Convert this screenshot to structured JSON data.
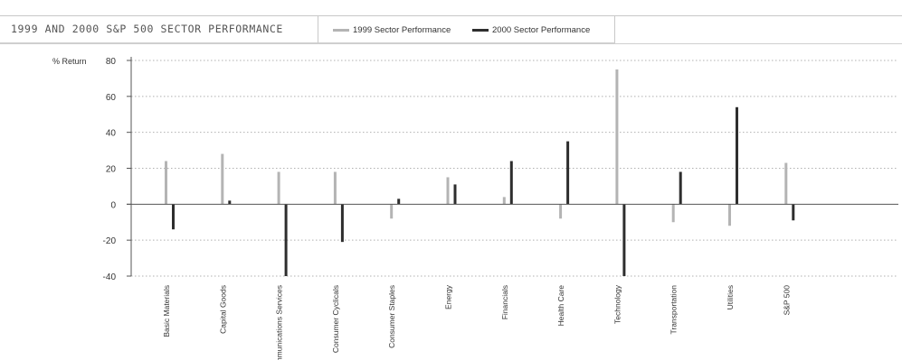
{
  "header": {
    "title": "1999 AND 2000 S&P 500 SECTOR PERFORMANCE"
  },
  "colors": {
    "series_1999": "#b4b4b4",
    "series_2000": "#2e2e2e",
    "grid": "#b0b0b0",
    "axis": "#555555"
  },
  "chart_data": {
    "type": "bar",
    "title": "1999 AND 2000 S&P 500 SECTOR PERFORMANCE",
    "ylabel": "% Return",
    "ylim": [
      -40,
      80
    ],
    "yticks": [
      80,
      60,
      40,
      20,
      0,
      -20,
      -40
    ],
    "grid": true,
    "legend": "top",
    "categories": [
      "Basic Materials",
      "Capital Goods",
      "Communications Services",
      "Consumer Cyclicals",
      "Consumer Staples",
      "Energy",
      "Financials",
      "Health Care",
      "Technology",
      "Transportation",
      "Utilities",
      "S&P 500"
    ],
    "series": [
      {
        "name": "1999 Sector Performance",
        "values": [
          24,
          28,
          18,
          18,
          -8,
          15,
          4,
          -8,
          75,
          -10,
          -12,
          23
        ]
      },
      {
        "name": "2000 Sector Performance",
        "values": [
          -14,
          2,
          -40,
          -21,
          3,
          11,
          24,
          35,
          -40,
          18,
          54,
          -9
        ]
      }
    ]
  }
}
